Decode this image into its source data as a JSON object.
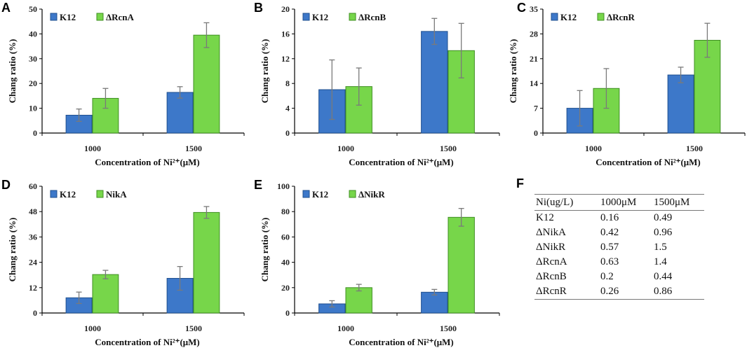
{
  "colors": {
    "k12": "#3d78c9",
    "k12_edge": "#1f4f8e",
    "mutant": "#77d64a",
    "mutant_edge": "#3f8f22",
    "error_bar": "#7a7a7a",
    "axis": "#000000"
  },
  "chart_data": [
    {
      "panel": "A",
      "type": "bar",
      "title": "",
      "xlabel": "Concentration of Ni²⁺(μM)",
      "ylabel": "Chang ratio (%)",
      "categories": [
        "1000",
        "1500"
      ],
      "ylim": [
        0,
        50
      ],
      "yticks": [
        0,
        10,
        20,
        30,
        40,
        50
      ],
      "series": [
        {
          "name": "K12",
          "values": [
            7.2,
            16.4
          ],
          "errors": [
            2.5,
            2.3
          ]
        },
        {
          "name": "ΔRcnA",
          "values": [
            14.0,
            39.5
          ],
          "errors": [
            4.0,
            5.0
          ]
        }
      ]
    },
    {
      "panel": "B",
      "type": "bar",
      "title": "",
      "xlabel": "Concentration of Ni²⁺(μM)",
      "ylabel": "Chang ratio (%)",
      "categories": [
        "1000",
        "1500"
      ],
      "ylim": [
        0,
        20
      ],
      "yticks": [
        0,
        4,
        8,
        12,
        16,
        20
      ],
      "series": [
        {
          "name": "K12",
          "values": [
            7.0,
            16.4
          ],
          "errors": [
            4.8,
            2.1
          ]
        },
        {
          "name": "ΔRcnB",
          "values": [
            7.5,
            13.3
          ],
          "errors": [
            3.0,
            4.4
          ]
        }
      ]
    },
    {
      "panel": "C",
      "type": "bar",
      "title": "",
      "xlabel": "Concentration of Ni²⁺(μM)",
      "ylabel": "Chang ratio (%)",
      "categories": [
        "1000",
        "1500"
      ],
      "ylim": [
        0,
        35
      ],
      "yticks": [
        0,
        7,
        14,
        21,
        28,
        35
      ],
      "series": [
        {
          "name": "K12",
          "values": [
            7.0,
            16.4
          ],
          "errors": [
            5.0,
            2.2
          ]
        },
        {
          "name": "ΔRcnR",
          "values": [
            12.6,
            26.2
          ],
          "errors": [
            5.6,
            4.8
          ]
        }
      ]
    },
    {
      "panel": "D",
      "type": "bar",
      "title": "",
      "xlabel": "Concentration of Ni²⁺(μM)",
      "ylabel": "Chang ratio (%)",
      "categories": [
        "1000",
        "1500"
      ],
      "ylim": [
        0,
        60
      ],
      "yticks": [
        0,
        12,
        24,
        36,
        48,
        60
      ],
      "series": [
        {
          "name": "K12",
          "values": [
            7.2,
            16.4
          ],
          "errors": [
            2.7,
            5.6
          ]
        },
        {
          "name": "NikA",
          "values": [
            18.2,
            47.6
          ],
          "errors": [
            2.0,
            2.8
          ]
        }
      ]
    },
    {
      "panel": "E",
      "type": "bar",
      "title": "",
      "xlabel": "Concentration of Ni²⁺(μM)",
      "ylabel": "Chang ratio (%)",
      "categories": [
        "1000",
        "1500"
      ],
      "ylim": [
        0,
        100
      ],
      "yticks": [
        0,
        20,
        40,
        60,
        80,
        100
      ],
      "series": [
        {
          "name": "K12",
          "values": [
            7.2,
            16.4
          ],
          "errors": [
            2.5,
            2.2
          ]
        },
        {
          "name": "ΔNikR",
          "values": [
            20.0,
            75.5
          ],
          "errors": [
            2.6,
            7.0
          ]
        }
      ]
    }
  ],
  "table": {
    "panel": "F",
    "headers": [
      "Ni(ug/L)",
      "1000μM",
      "1500μM"
    ],
    "rows": [
      [
        "K12",
        "0.16",
        "0.49"
      ],
      [
        "ΔNikA",
        "0.42",
        "0.96"
      ],
      [
        "ΔNikR",
        "0.57",
        "1.5"
      ],
      [
        "ΔRcnA",
        "0.63",
        "1.4"
      ],
      [
        "ΔRcnB",
        "0.2",
        "0.44"
      ],
      [
        "ΔRcnR",
        "0.26",
        "0.86"
      ]
    ]
  }
}
